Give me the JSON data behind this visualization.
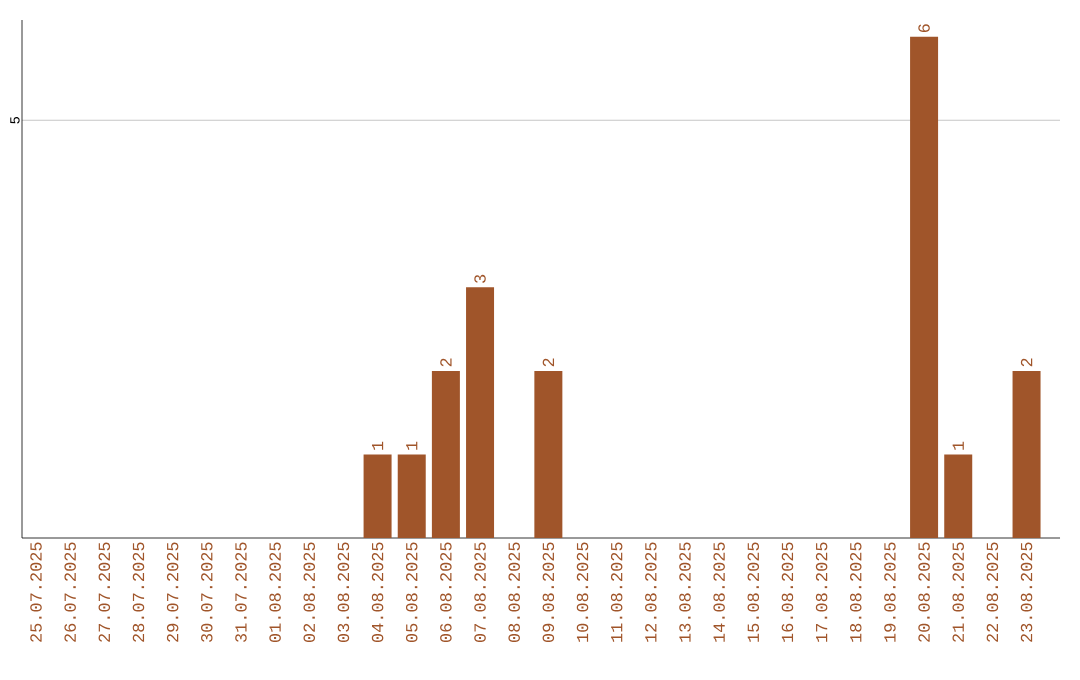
{
  "chart_data": {
    "type": "bar",
    "categories": [
      "25.07.2025",
      "26.07.2025",
      "27.07.2025",
      "28.07.2025",
      "29.07.2025",
      "30.07.2025",
      "31.07.2025",
      "01.08.2025",
      "02.08.2025",
      "03.08.2025",
      "04.08.2025",
      "05.08.2025",
      "06.08.2025",
      "07.08.2025",
      "08.08.2025",
      "09.08.2025",
      "10.08.2025",
      "11.08.2025",
      "12.08.2025",
      "13.08.2025",
      "14.08.2025",
      "15.08.2025",
      "16.08.2025",
      "17.08.2025",
      "18.08.2025",
      "19.08.2025",
      "20.08.2025",
      "21.08.2025",
      "22.08.2025",
      "23.08.2025"
    ],
    "values": [
      0,
      0,
      0,
      0,
      0,
      0,
      0,
      0,
      0,
      0,
      1,
      1,
      2,
      3,
      0,
      2,
      0,
      0,
      0,
      0,
      0,
      0,
      0,
      0,
      0,
      0,
      6,
      1,
      0,
      2
    ],
    "value_labels": [
      null,
      null,
      null,
      null,
      null,
      null,
      null,
      null,
      null,
      null,
      "1",
      "1",
      "2",
      "3",
      null,
      "2",
      null,
      null,
      null,
      null,
      null,
      null,
      null,
      null,
      null,
      null,
      "6",
      "1",
      null,
      "2"
    ],
    "color": "#a0552a",
    "ylim": [
      0,
      6.2
    ],
    "yticks": [
      5
    ],
    "grid": "y"
  }
}
